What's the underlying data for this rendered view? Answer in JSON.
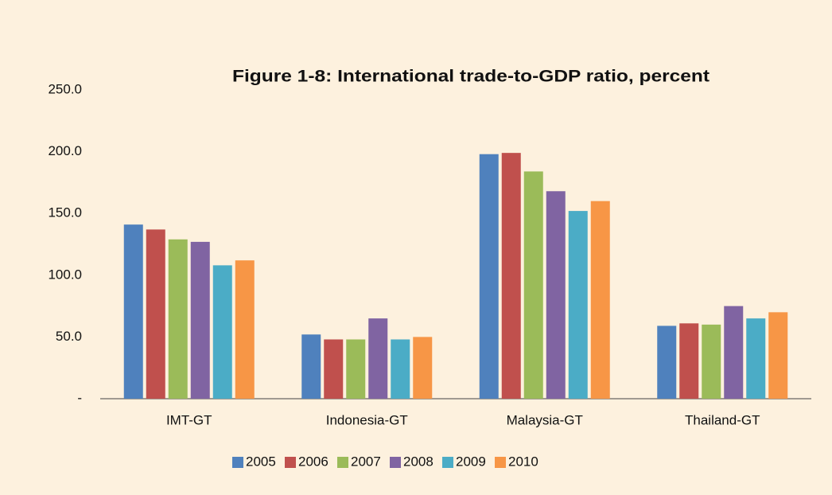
{
  "chart_data": {
    "type": "bar",
    "title": "Figure 1-8:  International trade-to-GDP ratio, percent",
    "categories": [
      "IMT-GT",
      "Indonesia-GT",
      "Malaysia-GT",
      "Thailand-GT"
    ],
    "series": [
      {
        "name": "2005",
        "color": "#4f81bd",
        "values": [
          141,
          52,
          198,
          59
        ]
      },
      {
        "name": "2006",
        "color": "#c0504d",
        "values": [
          137,
          48,
          199,
          61
        ]
      },
      {
        "name": "2007",
        "color": "#9bbb59",
        "values": [
          129,
          48,
          184,
          60
        ]
      },
      {
        "name": "2008",
        "color": "#8064a2",
        "values": [
          127,
          65,
          168,
          75
        ]
      },
      {
        "name": "2009",
        "color": "#4bacc6",
        "values": [
          108,
          48,
          152,
          65
        ]
      },
      {
        "name": "2010",
        "color": "#f79646",
        "values": [
          112,
          50,
          160,
          70
        ]
      }
    ],
    "ylim": [
      0,
      250
    ],
    "yticks": [
      {
        "value": 0,
        "label": "-"
      },
      {
        "value": 50,
        "label": "50.0"
      },
      {
        "value": 100,
        "label": "100.0"
      },
      {
        "value": 150,
        "label": "150.0"
      },
      {
        "value": 200,
        "label": "200.0"
      },
      {
        "value": 250,
        "label": "250.0"
      }
    ],
    "legend": "bottom"
  }
}
